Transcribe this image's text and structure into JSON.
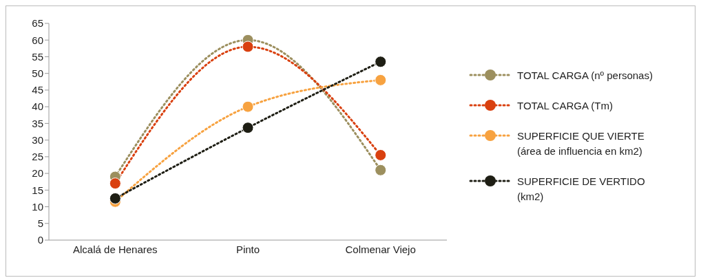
{
  "chart_data": {
    "type": "line",
    "categories": [
      "Alcalá de Henares",
      "Pinto",
      "Colmenar Viejo"
    ],
    "series": [
      {
        "name": "TOTAL CARGA (nº personas)",
        "color": "#9c8f5e",
        "values": [
          19,
          60,
          21
        ]
      },
      {
        "name": "TOTAL CARGA (Tm)",
        "color": "#d9400f",
        "values": [
          17,
          58,
          25.5
        ]
      },
      {
        "name": "SUPERFICIE QUE VIERTE (área de influencia en km2)",
        "color": "#f7a240",
        "values": [
          11.5,
          40,
          48
        ]
      },
      {
        "name": "SUPERFICIE DE VERTIDO (km2)",
        "color": "#1e1e14",
        "values": [
          12.5,
          33.7,
          53.5
        ]
      }
    ],
    "ylim": [
      0,
      65
    ],
    "yticks": [
      0,
      5,
      10,
      15,
      20,
      25,
      30,
      35,
      40,
      45,
      50,
      55,
      60,
      65
    ],
    "legend": "right",
    "marker": "circle",
    "line_style": "dotted"
  }
}
